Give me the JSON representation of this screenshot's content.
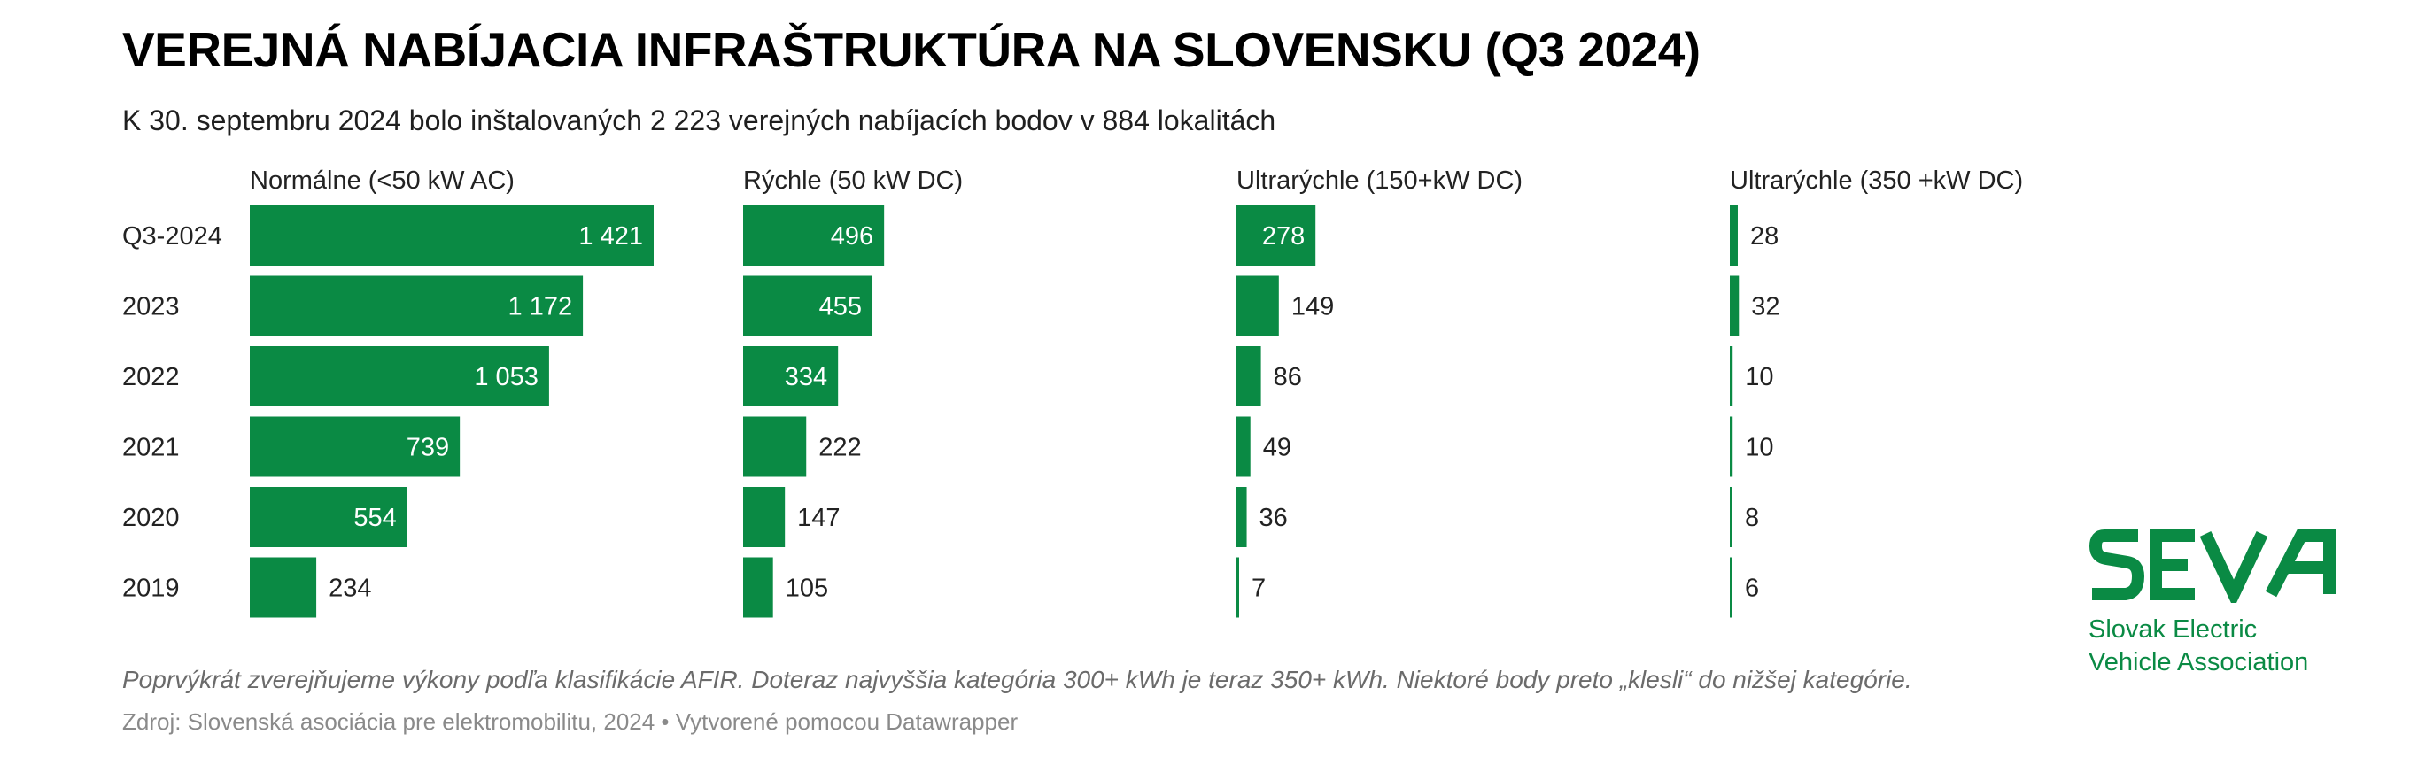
{
  "title": "VEREJNÁ NABÍJACIA INFRAŠTRUKTÚRA NA SLOVENSKU (Q3 2024)",
  "subtitle": "K 30. septembru 2024 bolo inštalovaných 2 223 verejných nabíjacích bodov v 884 lokalitách",
  "note": "Poprvýkrát zverejňujeme výkony podľa klasifikácie AFIR. Doteraz najvyššia kategória 300+ kWh je teraz 350+ kWh. Niektoré body preto „klesli“ do nižšej kategórie.",
  "source": "Zdroj: Slovenská asociácia pre elektromobilitu, 2024 • Vytvorené pomocou Datawrapper",
  "logo": {
    "text_line1": "Slovak Electric",
    "text_line2": "Vehicle Association",
    "color": "#0a8a44"
  },
  "colors": {
    "bar": "#0a8a44",
    "label_inside": "#ffffff",
    "label_outside": "#222222"
  },
  "chart_data": {
    "type": "bar",
    "orientation": "horizontal",
    "layout": "small-multiples",
    "categories": [
      "Q3-2024",
      "2023",
      "2022",
      "2021",
      "2020",
      "2019"
    ],
    "value_labels": {
      "Normálne (<50 kW AC)": [
        "1 421",
        "1 172",
        "1 053",
        "739",
        "554",
        "234"
      ]
    },
    "series": [
      {
        "name": "Normálne (<50 kW AC)",
        "values": [
          1421,
          1172,
          1053,
          739,
          554,
          234
        ],
        "xlim": [
          0,
          1421
        ]
      },
      {
        "name": "Rýchle (50 kW DC)",
        "values": [
          496,
          455,
          334,
          222,
          147,
          105
        ],
        "xlim": [
          0,
          1421
        ]
      },
      {
        "name": "Ultrarýchle (150+kW DC)",
        "values": [
          278,
          149,
          86,
          49,
          36,
          7
        ],
        "xlim": [
          0,
          1421
        ]
      },
      {
        "name": "Ultrarýchle (350 +kW DC)",
        "values": [
          28,
          32,
          10,
          10,
          8,
          6
        ],
        "xlim": [
          0,
          1421
        ]
      }
    ],
    "grid": false,
    "legend": "none"
  }
}
